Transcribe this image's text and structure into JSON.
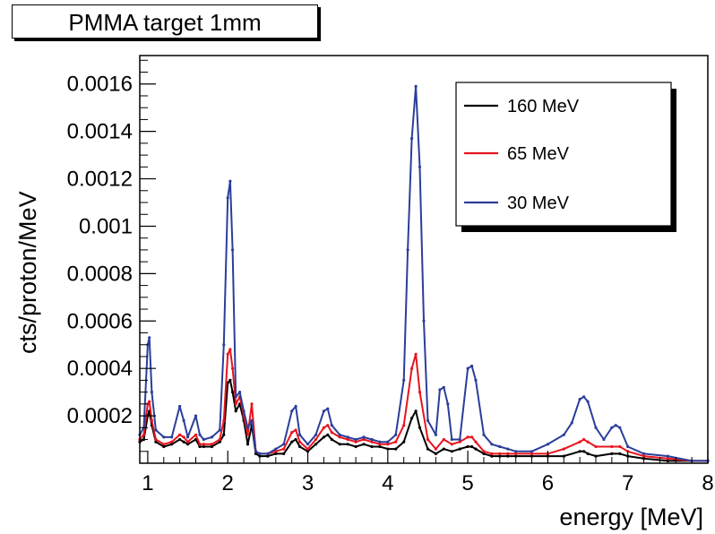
{
  "chart_data": {
    "type": "line",
    "title": "PMMA target 1mm",
    "xlabel": "energy [MeV]",
    "ylabel": "cts/proton/MeV",
    "xlim": [
      0.9,
      8.0
    ],
    "ylim": [
      0,
      0.00172
    ],
    "x_ticks": [
      1,
      2,
      3,
      4,
      5,
      6,
      7,
      8
    ],
    "x_tick_labels": [
      "1",
      "2",
      "3",
      "4",
      "5",
      "6",
      "7",
      "8"
    ],
    "y_ticks": [
      0.0002,
      0.0004,
      0.0006,
      0.0008,
      0.001,
      0.0012,
      0.0014,
      0.0016
    ],
    "y_tick_labels": [
      "0.0002",
      "0.0004",
      "0.0006",
      "0.0008",
      "0.001",
      "0.0012",
      "0.0014",
      "0.0016"
    ],
    "grid": false,
    "legend_position": "top-right",
    "series": [
      {
        "name": "160 MeV",
        "color": "#000000",
        "x": [
          0.9,
          0.95,
          1.0,
          1.02,
          1.05,
          1.1,
          1.2,
          1.3,
          1.4,
          1.45,
          1.5,
          1.6,
          1.65,
          1.7,
          1.8,
          1.9,
          1.95,
          2.0,
          2.03,
          2.06,
          2.1,
          2.15,
          2.2,
          2.25,
          2.3,
          2.35,
          2.4,
          2.5,
          2.6,
          2.7,
          2.8,
          2.85,
          2.9,
          3.0,
          3.1,
          3.2,
          3.25,
          3.3,
          3.4,
          3.5,
          3.6,
          3.7,
          3.8,
          3.9,
          4.0,
          4.1,
          4.2,
          4.3,
          4.35,
          4.4,
          4.5,
          4.6,
          4.7,
          4.8,
          4.9,
          5.0,
          5.05,
          5.1,
          5.2,
          5.3,
          5.4,
          5.5,
          5.6,
          5.8,
          6.0,
          6.2,
          6.4,
          6.45,
          6.5,
          6.6,
          6.8,
          6.9,
          7.0,
          7.2,
          7.5,
          7.8,
          8.0
        ],
        "values": [
          9e-05,
          0.0001,
          0.0002,
          0.00022,
          0.00016,
          9e-05,
          7e-05,
          8e-05,
          0.0001,
          9e-05,
          8e-05,
          0.0001,
          7e-05,
          7e-05,
          7e-05,
          9e-05,
          0.00012,
          0.00034,
          0.00035,
          0.0003,
          0.00022,
          0.00025,
          0.00018,
          8e-05,
          0.00016,
          4e-05,
          3e-05,
          3e-05,
          4e-05,
          4e-05,
          9e-05,
          0.0001,
          7e-05,
          5e-05,
          8e-05,
          0.00011,
          0.00012,
          0.0001,
          8e-05,
          8e-05,
          7e-05,
          8e-05,
          7e-05,
          7e-05,
          6e-05,
          6e-05,
          9e-05,
          0.00019,
          0.00022,
          0.00015,
          6e-05,
          4e-05,
          6e-05,
          5e-05,
          6e-05,
          7e-05,
          7e-05,
          6e-05,
          4e-05,
          3e-05,
          3e-05,
          3e-05,
          3e-05,
          3e-05,
          3e-05,
          3e-05,
          5e-05,
          5e-05,
          4e-05,
          3e-05,
          4e-05,
          4e-05,
          3e-05,
          2e-05,
          1e-05,
          1e-05,
          1e-05
        ]
      },
      {
        "name": "65 MeV",
        "color": "#e8141c",
        "x": [
          0.9,
          0.95,
          1.0,
          1.02,
          1.05,
          1.1,
          1.2,
          1.3,
          1.4,
          1.45,
          1.5,
          1.6,
          1.65,
          1.7,
          1.8,
          1.9,
          1.95,
          2.0,
          2.03,
          2.06,
          2.1,
          2.15,
          2.2,
          2.25,
          2.3,
          2.35,
          2.4,
          2.5,
          2.6,
          2.7,
          2.8,
          2.85,
          2.9,
          3.0,
          3.1,
          3.2,
          3.25,
          3.3,
          3.4,
          3.5,
          3.6,
          3.7,
          3.8,
          3.9,
          4.0,
          4.1,
          4.2,
          4.3,
          4.35,
          4.4,
          4.5,
          4.6,
          4.7,
          4.8,
          4.9,
          5.0,
          5.05,
          5.1,
          5.2,
          5.3,
          5.4,
          5.5,
          5.6,
          5.8,
          6.0,
          6.2,
          6.4,
          6.45,
          6.5,
          6.6,
          6.8,
          6.9,
          7.0,
          7.2,
          7.5,
          7.8,
          8.0
        ],
        "values": [
          0.0001,
          0.00012,
          0.00025,
          0.00026,
          0.00018,
          0.0001,
          8e-05,
          9e-05,
          0.00012,
          0.00011,
          9e-05,
          0.00012,
          8e-05,
          8e-05,
          8e-05,
          0.0001,
          0.00018,
          0.00046,
          0.00048,
          0.0004,
          0.00025,
          0.00028,
          0.0002,
          0.00012,
          0.00025,
          5e-05,
          4e-05,
          4e-05,
          5e-05,
          6e-05,
          0.00013,
          0.00014,
          9e-05,
          6e-05,
          0.0001,
          0.00015,
          0.00016,
          0.00013,
          0.00011,
          0.0001,
          9e-05,
          0.0001,
          9e-05,
          8e-05,
          8e-05,
          9e-05,
          0.00016,
          0.0004,
          0.00046,
          0.0003,
          0.0001,
          6e-05,
          0.0001,
          8e-05,
          9e-05,
          0.00011,
          0.00011,
          9e-05,
          5e-05,
          4e-05,
          4e-05,
          4e-05,
          4e-05,
          4e-05,
          4e-05,
          6e-05,
          9e-05,
          0.0001,
          9e-05,
          7e-05,
          7e-05,
          7e-05,
          5e-05,
          3e-05,
          2e-05,
          1e-05,
          1e-05
        ]
      },
      {
        "name": "30 MeV",
        "color": "#2b3e9a",
        "x": [
          0.9,
          0.95,
          1.0,
          1.02,
          1.05,
          1.1,
          1.2,
          1.3,
          1.4,
          1.45,
          1.5,
          1.6,
          1.65,
          1.7,
          1.8,
          1.9,
          1.95,
          2.0,
          2.03,
          2.06,
          2.1,
          2.15,
          2.2,
          2.25,
          2.3,
          2.35,
          2.4,
          2.5,
          2.6,
          2.7,
          2.8,
          2.85,
          2.9,
          3.0,
          3.1,
          3.2,
          3.25,
          3.3,
          3.4,
          3.5,
          3.6,
          3.7,
          3.8,
          3.9,
          4.0,
          4.1,
          4.2,
          4.25,
          4.3,
          4.35,
          4.4,
          4.45,
          4.5,
          4.6,
          4.65,
          4.7,
          4.75,
          4.8,
          4.9,
          5.0,
          5.05,
          5.1,
          5.2,
          5.3,
          5.4,
          5.5,
          5.6,
          5.8,
          6.0,
          6.2,
          6.3,
          6.4,
          6.45,
          6.5,
          6.6,
          6.7,
          6.8,
          6.85,
          6.9,
          7.0,
          7.2,
          7.5,
          7.8,
          8.0
        ],
        "values": [
          0.00012,
          0.00015,
          0.0005,
          0.00053,
          0.0003,
          0.00014,
          0.00011,
          0.00011,
          0.00024,
          0.00018,
          0.00011,
          0.0002,
          0.00012,
          0.0001,
          0.00011,
          0.00014,
          0.0005,
          0.00112,
          0.00119,
          0.0009,
          0.00028,
          0.0003,
          0.00022,
          0.00015,
          0.00018,
          5e-05,
          4e-05,
          4e-05,
          6e-05,
          8e-05,
          0.00022,
          0.00024,
          0.00012,
          8e-05,
          0.00012,
          0.00022,
          0.00023,
          0.00016,
          0.00012,
          0.00011,
          0.0001,
          0.00011,
          0.0001,
          9e-05,
          9e-05,
          0.00012,
          0.00035,
          0.0009,
          0.00137,
          0.00159,
          0.00125,
          0.0006,
          0.00018,
          0.00012,
          0.00031,
          0.00032,
          0.00025,
          0.0001,
          0.0001,
          0.0004,
          0.00041,
          0.00035,
          0.00012,
          8e-05,
          7e-05,
          6e-05,
          5e-05,
          5e-05,
          8e-05,
          0.00012,
          0.00017,
          0.00027,
          0.00028,
          0.00026,
          0.00015,
          0.0001,
          0.00015,
          0.00016,
          0.00015,
          7e-05,
          4e-05,
          3e-05,
          1e-05,
          1e-05
        ]
      }
    ]
  }
}
